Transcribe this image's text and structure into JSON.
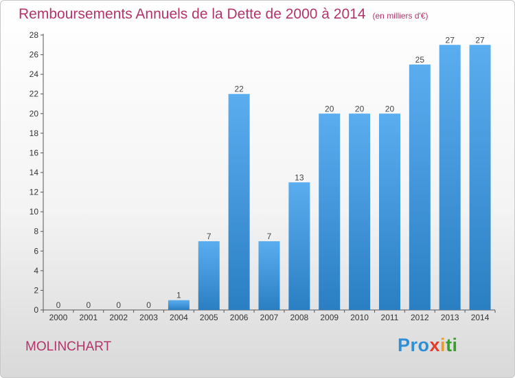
{
  "header": {
    "title": "Remboursements Annuels de la Dette de 2000 à 2014",
    "unit": "(en milliers d'€)"
  },
  "footer": {
    "commune": "MOLINCHART",
    "logo_text": "Proxiti"
  },
  "colors": {
    "title": "#b5336b",
    "bar_top": "#5aaef0",
    "bar_bottom": "#2a7ec2",
    "axis": "#555555"
  },
  "chart_data": {
    "type": "bar",
    "title": "Remboursements Annuels de la Dette de 2000 à 2014",
    "xlabel": "",
    "ylabel": "",
    "categories": [
      "2000",
      "2001",
      "2002",
      "2003",
      "2004",
      "2005",
      "2006",
      "2007",
      "2008",
      "2009",
      "2010",
      "2011",
      "2012",
      "2013",
      "2014"
    ],
    "values": [
      0,
      0,
      0,
      0,
      1,
      7,
      22,
      7,
      13,
      20,
      20,
      20,
      25,
      27,
      27
    ],
    "ylim": [
      0,
      28
    ],
    "yticks": [
      0,
      2,
      4,
      6,
      8,
      10,
      12,
      14,
      16,
      18,
      20,
      22,
      24,
      26,
      28
    ],
    "grid": false,
    "data_labels": true
  }
}
